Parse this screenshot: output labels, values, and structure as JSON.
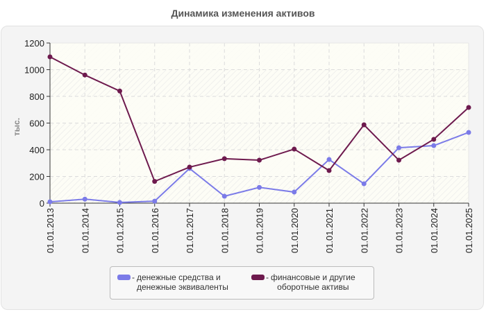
{
  "title": "Динамика изменения активов",
  "colors": {
    "series_cash": "#7b7be8",
    "series_financial": "#6e1a4e",
    "axis": "#333333",
    "grid": "#dcdcdc",
    "plot_bg": "#fdfdf6",
    "frame_bg": "#f4f4f4"
  },
  "legend": {
    "items": [
      {
        "label_line1": "денежные средства и",
        "label_line2": "денежные эквиваленты",
        "color": "#7b7be8"
      },
      {
        "label_line1": "финансовые и другие",
        "label_line2": "оборотные активы",
        "color": "#6e1a4e"
      }
    ]
  },
  "chart_data": {
    "type": "line",
    "title": "Динамика изменения активов",
    "xlabel": "",
    "ylabel": "тыс.",
    "ylim": [
      0,
      1200
    ],
    "yticks": [
      0,
      200,
      400,
      600,
      800,
      1000,
      1200
    ],
    "grid": true,
    "legend_position": "bottom",
    "categories": [
      "01.01.2013",
      "01.01.2014",
      "01.01.2015",
      "01.01.2016",
      "01.01.2017",
      "01.01.2018",
      "01.01.2019",
      "01.01.2020",
      "01.01.2021",
      "01.01.2022",
      "01.01.2023",
      "01.01.2024",
      "01.01.2025"
    ],
    "series": [
      {
        "name": "денежные средства и денежные эквиваленты",
        "color": "#7b7be8",
        "values": [
          10,
          30,
          5,
          15,
          260,
          52,
          118,
          83,
          327,
          145,
          415,
          431,
          530
        ]
      },
      {
        "name": "финансовые и другие оборотные активы",
        "color": "#6e1a4e",
        "values": [
          1096,
          960,
          840,
          163,
          270,
          333,
          322,
          405,
          244,
          587,
          322,
          478,
          717
        ]
      }
    ]
  }
}
